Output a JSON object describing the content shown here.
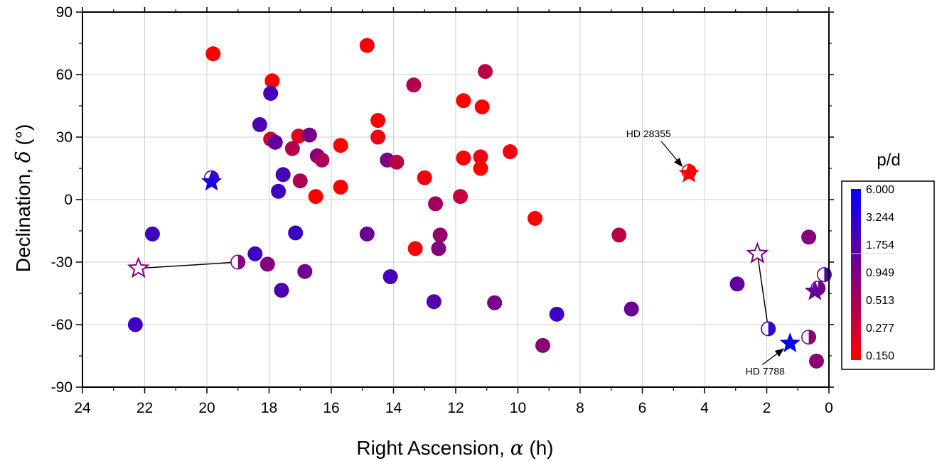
{
  "chart_data": {
    "type": "scatter",
    "title": "",
    "xlabel": "Right Ascension, ",
    "xlabel_symbol": "α",
    "xlabel_unit": " (h)",
    "ylabel": "Declination, ",
    "ylabel_symbol": "δ",
    "ylabel_unit": " (°)",
    "xlim": [
      24,
      0
    ],
    "ylim": [
      -90,
      90
    ],
    "x_reversed": true,
    "x_ticks": [
      24,
      22,
      20,
      18,
      16,
      14,
      12,
      10,
      8,
      6,
      4,
      2,
      0
    ],
    "y_ticks": [
      -90,
      -60,
      -30,
      0,
      30,
      60,
      90
    ],
    "y_tick_labels": [
      "-90",
      "-60",
      "-30",
      "0",
      "30",
      "60",
      "90"
    ],
    "grid": true,
    "colorbar": {
      "title": "p/d",
      "labels": [
        "6.000",
        "3.244",
        "1.754",
        "0.949",
        "0.513",
        "0.277",
        "0.150"
      ],
      "colors": [
        "#0000ff",
        "#2b00d4",
        "#5500aa",
        "#800080",
        "#aa0055",
        "#d4002b",
        "#ff0000"
      ],
      "min": 0.15,
      "max": 6.0,
      "scale": "log"
    },
    "points": [
      {
        "ra": 19.8,
        "dec": 70,
        "pd": 0.15
      },
      {
        "ra": 14.85,
        "dec": 74,
        "pd": 0.18
      },
      {
        "ra": 17.9,
        "dec": 57,
        "pd": 0.15
      },
      {
        "ra": 17.95,
        "dec": 51,
        "pd": 2.2
      },
      {
        "ra": 11.05,
        "dec": 61.5,
        "pd": 0.4
      },
      {
        "ra": 13.35,
        "dec": 55,
        "pd": 0.45
      },
      {
        "ra": 11.75,
        "dec": 47.5,
        "pd": 0.15
      },
      {
        "ra": 11.15,
        "dec": 44.5,
        "pd": 0.15
      },
      {
        "ra": 14.5,
        "dec": 38,
        "pd": 0.15
      },
      {
        "ra": 18.3,
        "dec": 36,
        "pd": 2.0
      },
      {
        "ra": 14.5,
        "dec": 30,
        "pd": 0.2
      },
      {
        "ra": 17.95,
        "dec": 29,
        "pd": 0.3
      },
      {
        "ra": 17.8,
        "dec": 27.5,
        "pd": 1.6
      },
      {
        "ra": 17.05,
        "dec": 30.5,
        "pd": 0.25
      },
      {
        "ra": 16.7,
        "dec": 31,
        "pd": 1.1
      },
      {
        "ra": 17.25,
        "dec": 24.5,
        "pd": 0.45
      },
      {
        "ra": 16.45,
        "dec": 21,
        "pd": 0.9
      },
      {
        "ra": 16.3,
        "dec": 19,
        "pd": 0.5
      },
      {
        "ra": 15.7,
        "dec": 26,
        "pd": 0.15
      },
      {
        "ra": 14.2,
        "dec": 19,
        "pd": 1.0
      },
      {
        "ra": 13.9,
        "dec": 18,
        "pd": 0.4
      },
      {
        "ra": 11.75,
        "dec": 20,
        "pd": 0.15
      },
      {
        "ra": 11.2,
        "dec": 20.5,
        "pd": 0.2
      },
      {
        "ra": 11.2,
        "dec": 15,
        "pd": 0.15
      },
      {
        "ra": 10.25,
        "dec": 23,
        "pd": 0.18
      },
      {
        "ra": 13.0,
        "dec": 10.5,
        "pd": 0.18
      },
      {
        "ra": 17.55,
        "dec": 12,
        "pd": 2.2
      },
      {
        "ra": 17.0,
        "dec": 9,
        "pd": 0.5
      },
      {
        "ra": 17.7,
        "dec": 4,
        "pd": 2.5
      },
      {
        "ra": 16.5,
        "dec": 1.5,
        "pd": 0.15
      },
      {
        "ra": 15.7,
        "dec": 6,
        "pd": 0.15
      },
      {
        "ra": 12.65,
        "dec": -2,
        "pd": 0.6
      },
      {
        "ra": 11.85,
        "dec": 1.5,
        "pd": 0.35
      },
      {
        "ra": 9.45,
        "dec": -9,
        "pd": 0.15
      },
      {
        "ra": 6.75,
        "dec": -17,
        "pd": 0.4
      },
      {
        "ra": 21.75,
        "dec": -16.5,
        "pd": 2.5
      },
      {
        "ra": 17.15,
        "dec": -16,
        "pd": 2.5
      },
      {
        "ra": 14.85,
        "dec": -16.5,
        "pd": 1.3
      },
      {
        "ra": 12.5,
        "dec": -17,
        "pd": 0.7
      },
      {
        "ra": 12.55,
        "dec": -23.5,
        "pd": 0.9
      },
      {
        "ra": 13.3,
        "dec": -23.5,
        "pd": 0.15
      },
      {
        "ra": 18.45,
        "dec": -26,
        "pd": 2.5
      },
      {
        "ra": 18.05,
        "dec": -31,
        "pd": 0.9
      },
      {
        "ra": 16.85,
        "dec": -34.5,
        "pd": 1.2
      },
      {
        "ra": 17.6,
        "dec": -43.5,
        "pd": 2.0
      },
      {
        "ra": 14.1,
        "dec": -37,
        "pd": 2.2
      },
      {
        "ra": 12.7,
        "dec": -49,
        "pd": 1.8
      },
      {
        "ra": 10.75,
        "dec": -49.5,
        "pd": 1.1
      },
      {
        "ra": 8.75,
        "dec": -55,
        "pd": 2.5
      },
      {
        "ra": 6.35,
        "dec": -52.5,
        "pd": 1.3
      },
      {
        "ra": 9.2,
        "dec": -70,
        "pd": 0.8
      },
      {
        "ra": 22.3,
        "dec": -60,
        "pd": 2.5
      },
      {
        "ra": 2.95,
        "dec": -40.5,
        "pd": 1.5
      },
      {
        "ra": 0.65,
        "dec": -18,
        "pd": 0.9
      },
      {
        "ra": 0.4,
        "dec": -77.5,
        "pd": 0.8
      }
    ],
    "half_points": [
      {
        "ra": 19.0,
        "dec": -30,
        "pd": 0.9
      },
      {
        "ra": 1.95,
        "dec": -62,
        "pd": 3.0
      },
      {
        "ra": 0.65,
        "dec": -66,
        "pd": 0.8
      },
      {
        "ra": 0.15,
        "dec": -36,
        "pd": 2.0
      },
      {
        "ra": 0.35,
        "dec": -42.5,
        "pd": 1.1
      },
      {
        "ra": 19.85,
        "dec": 10.5,
        "pd": 2.2
      },
      {
        "ra": 4.5,
        "dec": 13.5,
        "pd": 0.15
      }
    ],
    "stars": [
      {
        "ra": 19.85,
        "dec": 8.5,
        "pd": 4.0
      },
      {
        "ra": 4.5,
        "dec": 12.5,
        "pd": 0.15
      },
      {
        "ra": 22.2,
        "dec": -33,
        "pd": 0.9,
        "hollow": true
      },
      {
        "ra": 2.3,
        "dec": -26,
        "pd": 1.1,
        "hollow": true
      },
      {
        "ra": 1.25,
        "dec": -69,
        "pd": 6.0
      },
      {
        "ra": 0.45,
        "dec": -44,
        "pd": 1.4
      }
    ],
    "connectors": [
      {
        "from": {
          "ra": 22.2,
          "dec": -33
        },
        "to": {
          "ra": 19.0,
          "dec": -30
        }
      },
      {
        "from": {
          "ra": 2.3,
          "dec": -26
        },
        "to": {
          "ra": 1.95,
          "dec": -62
        }
      },
      {
        "from": {
          "ra": 0.45,
          "dec": -44
        },
        "to": {
          "ra": 0.15,
          "dec": -36
        }
      }
    ],
    "annotations": [
      {
        "text": "HD 28355",
        "ra": 4.5,
        "dec": 13.5,
        "label_ra": 5.8,
        "label_dec": 30
      },
      {
        "text": "HD 7788",
        "ra": 1.25,
        "dec": -69,
        "label_ra": 2.05,
        "label_dec": -84
      }
    ]
  }
}
